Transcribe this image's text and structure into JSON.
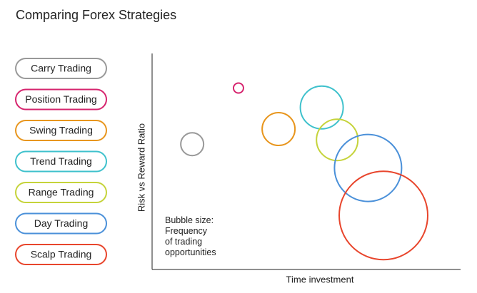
{
  "chart_data": {
    "type": "bubble",
    "title": "Comparing Forex Strategies",
    "x_label": "Time investment",
    "y_label": "Risk vs Reward Ratio",
    "annotation": "Bubble size:\nFrequency\nof trading\nopportunities",
    "xlim": [
      0,
      100
    ],
    "ylim": [
      0,
      100
    ],
    "grid": false,
    "legend": "left",
    "series": [
      {
        "name": "Carry Trading",
        "color": "#999999",
        "x": 13,
        "y": 58,
        "size": 16
      },
      {
        "name": "Position Trading",
        "color": "#d6246e",
        "x": 28,
        "y": 84,
        "size": 7
      },
      {
        "name": "Swing Trading",
        "color": "#e8961e",
        "x": 41,
        "y": 65,
        "size": 23
      },
      {
        "name": "Trend Trading",
        "color": "#3ec1cc",
        "x": 55,
        "y": 75,
        "size": 30
      },
      {
        "name": "Range Trading",
        "color": "#c5d33a",
        "x": 60,
        "y": 60,
        "size": 29
      },
      {
        "name": "Day Trading",
        "color": "#4a90d9",
        "x": 70,
        "y": 47,
        "size": 47
      },
      {
        "name": "Scalp Trading",
        "color": "#e8452c",
        "x": 75,
        "y": 25,
        "size": 62
      }
    ]
  }
}
